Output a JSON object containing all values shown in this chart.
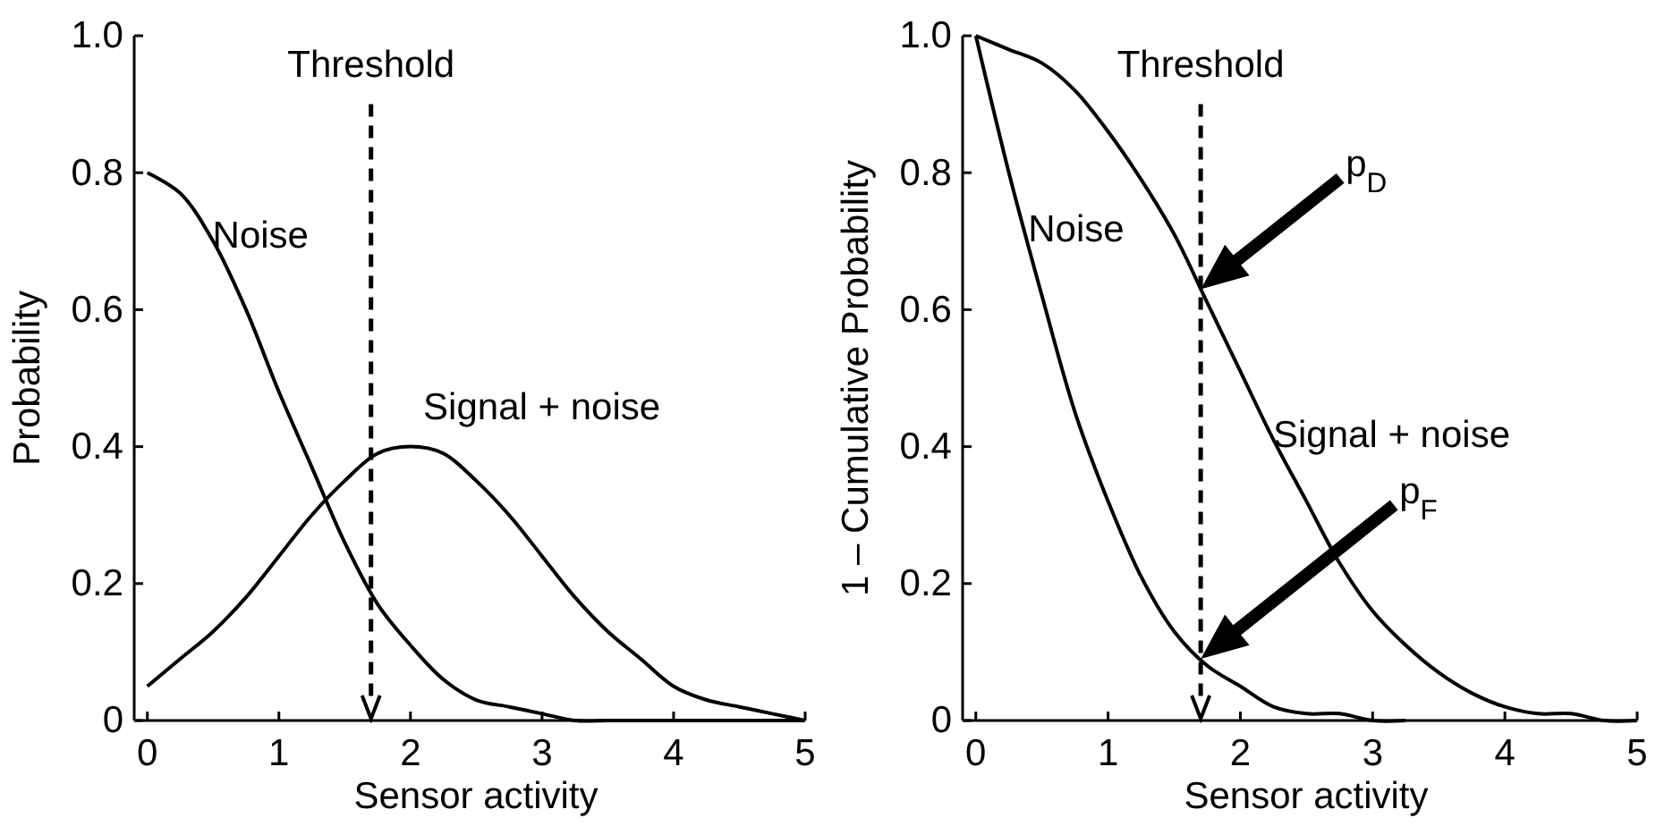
{
  "chart_data": [
    {
      "type": "line",
      "x": [
        0,
        0.25,
        0.5,
        0.75,
        1,
        1.25,
        1.5,
        1.75,
        2,
        2.25,
        2.5,
        2.75,
        3,
        3.25,
        3.5,
        3.75,
        4,
        4.25,
        4.5,
        4.75,
        5
      ],
      "xlabel": "Sensor activity",
      "ylabel": "Probability",
      "xlim": [
        -0.1,
        5
      ],
      "ylim": [
        0,
        1
      ],
      "xticks": [
        0,
        1,
        2,
        3,
        4,
        5
      ],
      "yticks": [
        0,
        0.2,
        0.4,
        0.6,
        0.8,
        {
          "value": 1,
          "label": "1.0"
        }
      ],
      "grid": false,
      "legend": false,
      "marker": "none",
      "line_style": "solid",
      "series": [
        {
          "name": "Noise",
          "color": "#000000",
          "values": [
            0.8,
            0.77,
            0.7,
            0.6,
            0.48,
            0.37,
            0.26,
            0.17,
            0.11,
            0.06,
            0.03,
            0.02,
            0.01,
            0,
            0,
            0,
            0,
            0,
            0,
            0,
            0
          ]
        },
        {
          "name": "Signal + noise",
          "color": "#000000",
          "values": [
            0.05,
            0.09,
            0.13,
            0.18,
            0.24,
            0.3,
            0.35,
            0.39,
            0.4,
            0.39,
            0.35,
            0.3,
            0.24,
            0.18,
            0.13,
            0.09,
            0.05,
            0.03,
            0.02,
            0.01,
            0
          ]
        }
      ],
      "ref_lines": [
        {
          "axis": "x",
          "value": 1.7,
          "label": "Threshold",
          "color": "#000000",
          "line_style": "dashed"
        }
      ]
    },
    {
      "type": "line",
      "x": [
        0,
        0.25,
        0.5,
        0.75,
        1,
        1.25,
        1.5,
        1.75,
        2,
        2.25,
        2.5,
        2.75,
        3,
        3.25,
        3.5,
        3.75,
        4,
        4.25,
        4.5,
        4.75,
        5
      ],
      "xlabel": "Sensor activity",
      "ylabel": "1 – Cumulative Probability",
      "xlim": [
        -0.1,
        5
      ],
      "ylim": [
        0,
        1
      ],
      "xticks": [
        0,
        1,
        2,
        3,
        4,
        5
      ],
      "yticks": [
        0,
        0.2,
        0.4,
        0.6,
        0.8,
        {
          "value": 1,
          "label": "1.0"
        }
      ],
      "grid": false,
      "legend": false,
      "marker": "none",
      "line_style": "solid",
      "series": [
        {
          "name": "Noise",
          "color": "#000000",
          "values": [
            1.0,
            0.8,
            0.62,
            0.45,
            0.32,
            0.21,
            0.13,
            0.08,
            0.05,
            0.02,
            0.01,
            0.01,
            0,
            0,
            null,
            null,
            null,
            null,
            null,
            null,
            null
          ]
        },
        {
          "name": "Signal + noise",
          "color": "#000000",
          "values": [
            1.0,
            0.98,
            0.96,
            0.92,
            0.86,
            0.79,
            0.71,
            0.61,
            0.51,
            0.41,
            0.32,
            0.23,
            0.16,
            0.11,
            0.07,
            0.04,
            0.02,
            0.01,
            0.01,
            0,
            0
          ]
        }
      ],
      "ref_lines": [
        {
          "axis": "x",
          "value": 1.7,
          "label": "Threshold",
          "color": "#000000",
          "line_style": "dashed"
        }
      ],
      "annotations": [
        "p$_{D}$",
        "p$_{F}$"
      ]
    }
  ]
}
